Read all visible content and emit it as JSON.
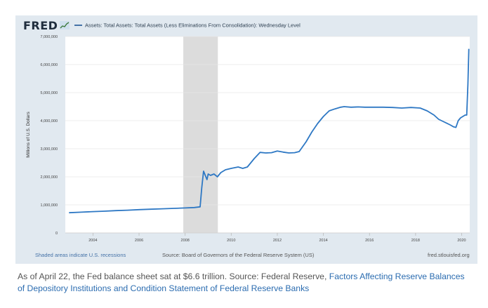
{
  "header": {
    "logo_text": "FRED",
    "legend_label": "Assets: Total Assets: Total Assets (Less Eliminations From Consolidation): Wednesday Level"
  },
  "footer": {
    "recessions_note": "Shaded areas indicate U.S. recessions",
    "source": "Source: Board of Governors of the Federal Reserve System (US)",
    "site": "fred.stlouisfed.org"
  },
  "caption": {
    "text": "As of April 22, the Fed balance sheet sat at $6.6 trillion. Source: Federal Reserve,",
    "link_text": "Factors Affecting Reserve Balances of Depository Institutions and Condition Statement of Federal Reserve Banks"
  },
  "colors": {
    "line": "#2e78c4",
    "panel": "#e1e9f0",
    "plot_bg": "#ffffff",
    "recession": "#dcdcdc",
    "link": "#2b6cb0"
  },
  "chart_data": {
    "type": "line",
    "title": "",
    "xlabel": "",
    "ylabel": "Millions of U.S. Dollars",
    "xlim": [
      2002.8,
      2020.35
    ],
    "ylim": [
      0,
      7000000
    ],
    "yticks": [
      0,
      1000000,
      2000000,
      3000000,
      4000000,
      5000000,
      6000000,
      7000000
    ],
    "ytick_labels": [
      "0",
      "1,000,000",
      "2,000,000",
      "3,000,000",
      "4,000,000",
      "5,000,000",
      "6,000,000",
      "7,000,000"
    ],
    "xticks": [
      2004,
      2006,
      2008,
      2010,
      2012,
      2014,
      2016,
      2018,
      2020
    ],
    "xtick_labels": [
      "2004",
      "2006",
      "2008",
      "2010",
      "2012",
      "2014",
      "2016",
      "2018",
      "2020"
    ],
    "grid": true,
    "legend_position": "top",
    "recessions": [
      {
        "start": 2007.92,
        "end": 2009.42
      }
    ],
    "series": [
      {
        "name": "Assets: Total Assets: Total Assets (Less Eliminations From Consolidation): Wednesday Level",
        "x": [
          2002.96,
          2003.5,
          2004.0,
          2004.5,
          2005.0,
          2005.5,
          2006.0,
          2006.5,
          2007.0,
          2007.5,
          2008.0,
          2008.4,
          2008.65,
          2008.72,
          2008.8,
          2008.95,
          2009.0,
          2009.1,
          2009.25,
          2009.4,
          2009.55,
          2009.75,
          2010.0,
          2010.3,
          2010.5,
          2010.7,
          2010.85,
          2011.0,
          2011.25,
          2011.5,
          2011.75,
          2012.0,
          2012.25,
          2012.5,
          2012.75,
          2012.95,
          2013.25,
          2013.5,
          2013.75,
          2014.0,
          2014.25,
          2014.5,
          2014.75,
          2014.9,
          2015.2,
          2015.5,
          2015.8,
          2016.2,
          2016.6,
          2017.0,
          2017.4,
          2017.8,
          2018.2,
          2018.5,
          2018.8,
          2019.0,
          2019.25,
          2019.5,
          2019.65,
          2019.75,
          2019.85,
          2019.95,
          2020.05,
          2020.15,
          2020.22,
          2020.27,
          2020.31
        ],
        "values": [
          720000,
          740000,
          760000,
          775000,
          795000,
          810000,
          830000,
          845000,
          860000,
          875000,
          890000,
          905000,
          930000,
          1600000,
          2200000,
          1900000,
          2100000,
          2050000,
          2100000,
          2000000,
          2150000,
          2250000,
          2300000,
          2350000,
          2300000,
          2350000,
          2500000,
          2650000,
          2870000,
          2850000,
          2860000,
          2920000,
          2880000,
          2850000,
          2860000,
          2900000,
          3250000,
          3600000,
          3900000,
          4150000,
          4350000,
          4420000,
          4480000,
          4500000,
          4480000,
          4490000,
          4480000,
          4480000,
          4480000,
          4470000,
          4450000,
          4470000,
          4450000,
          4350000,
          4200000,
          4050000,
          3950000,
          3850000,
          3780000,
          3760000,
          4000000,
          4100000,
          4150000,
          4200000,
          4200000,
          5300000,
          6560000
        ]
      }
    ]
  }
}
